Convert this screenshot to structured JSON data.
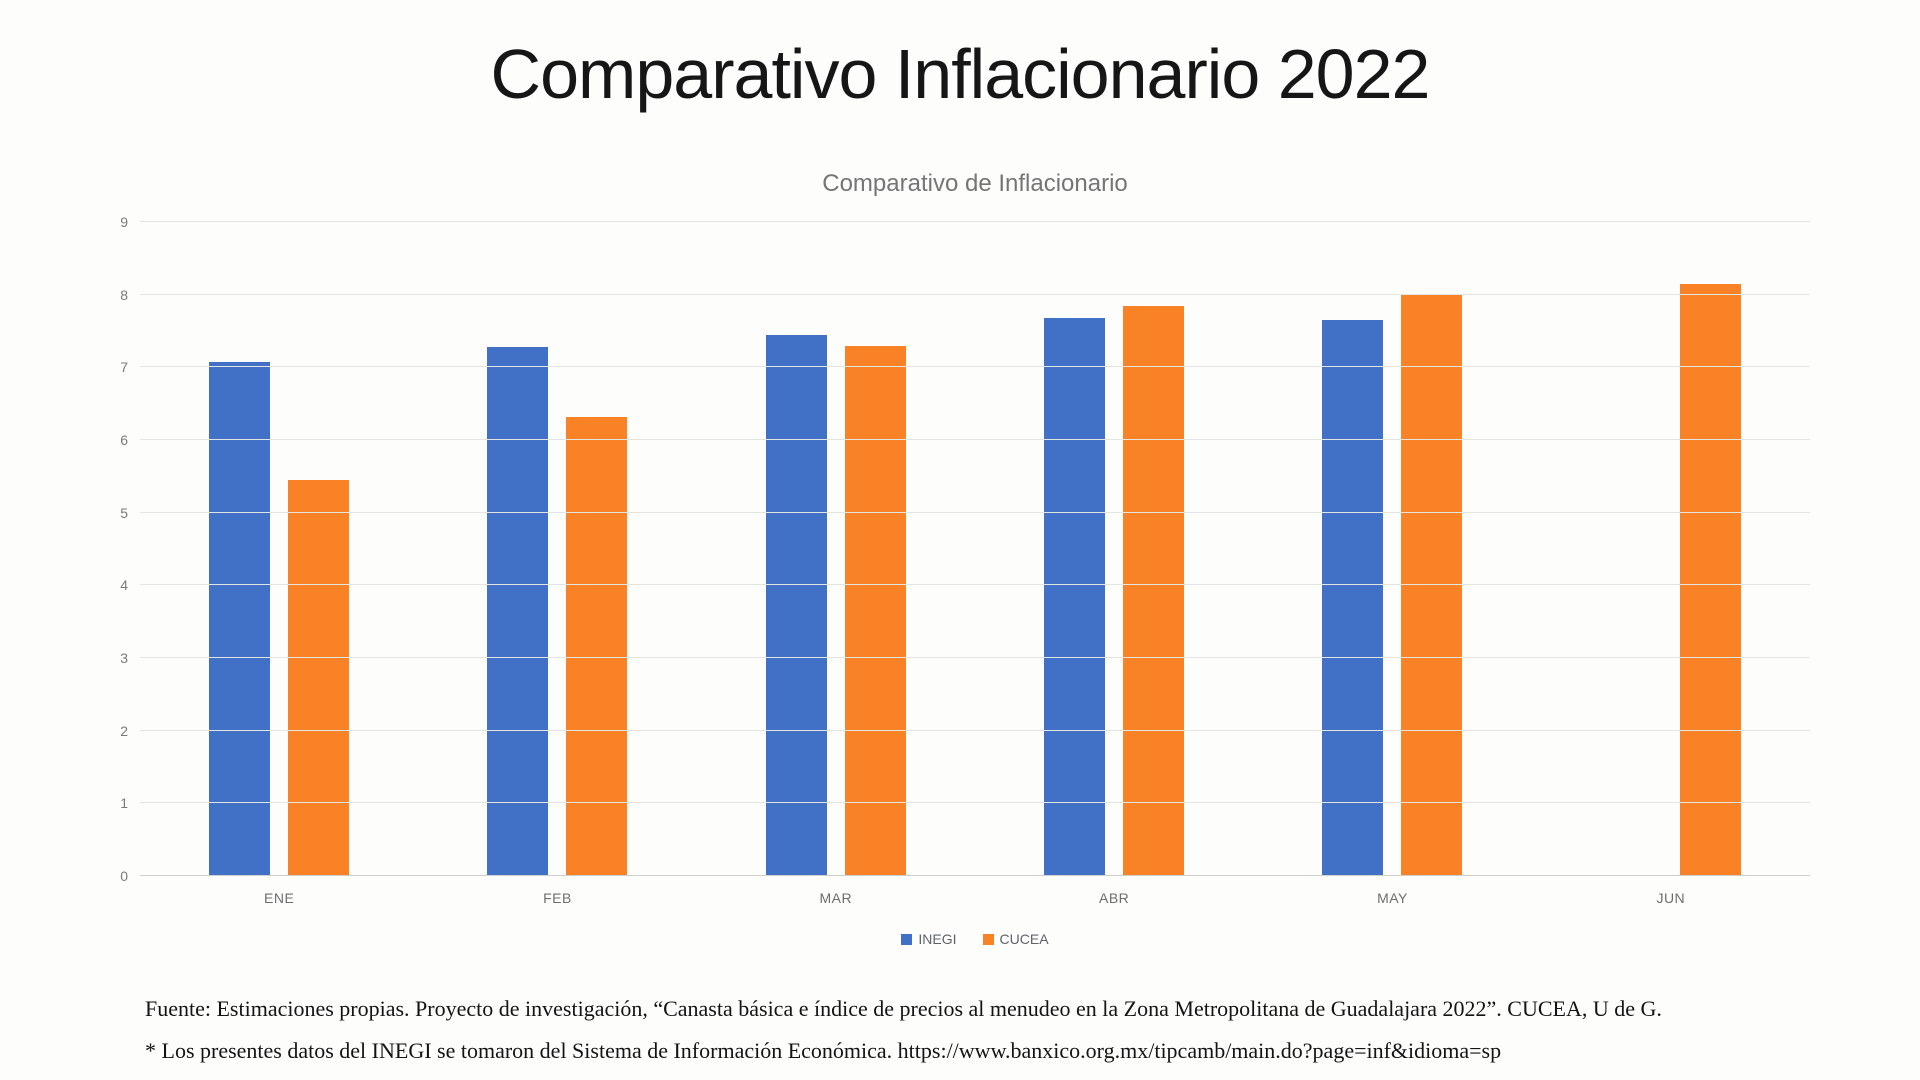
{
  "title": "Comparativo Inflacionario 2022",
  "chart_data": {
    "type": "bar",
    "title": "Comparativo de Inflacionario",
    "categories": [
      "ENE",
      "FEB",
      "MAR",
      "ABR",
      "MAY",
      "JUN"
    ],
    "series": [
      {
        "name": "INEGI",
        "color": "#4170C7",
        "values": [
          7.07,
          7.28,
          7.45,
          7.68,
          7.65,
          null
        ]
      },
      {
        "name": "CUCEA",
        "color": "#F98227",
        "values": [
          5.45,
          6.32,
          7.3,
          7.84,
          8.0,
          8.15
        ]
      }
    ],
    "ylim": [
      0,
      9
    ],
    "yticks": [
      0,
      1,
      2,
      3,
      4,
      5,
      6,
      7,
      8,
      9
    ],
    "grid": "horizontal",
    "legend_position": "bottom",
    "xlabel": "",
    "ylabel": ""
  },
  "footer": {
    "line1": "Fuente: Estimaciones propias. Proyecto de investigación, “Canasta básica e índice de precios al menudeo en la Zona Metropolitana de Guadalajara 2022”. CUCEA, U de G.",
    "line2": "* Los presentes datos del INEGI se tomaron del Sistema de Información Económica. https://www.banxico.org.mx/tipcamb/main.do?page=inf&idioma=sp"
  },
  "colors": {
    "background": "#fdfdfb",
    "gridline": "#e4e4e1",
    "tick_text": "#7a7a7a",
    "subtitle_text": "#757575",
    "title_text": "#161616",
    "footer_text": "#141414"
  }
}
